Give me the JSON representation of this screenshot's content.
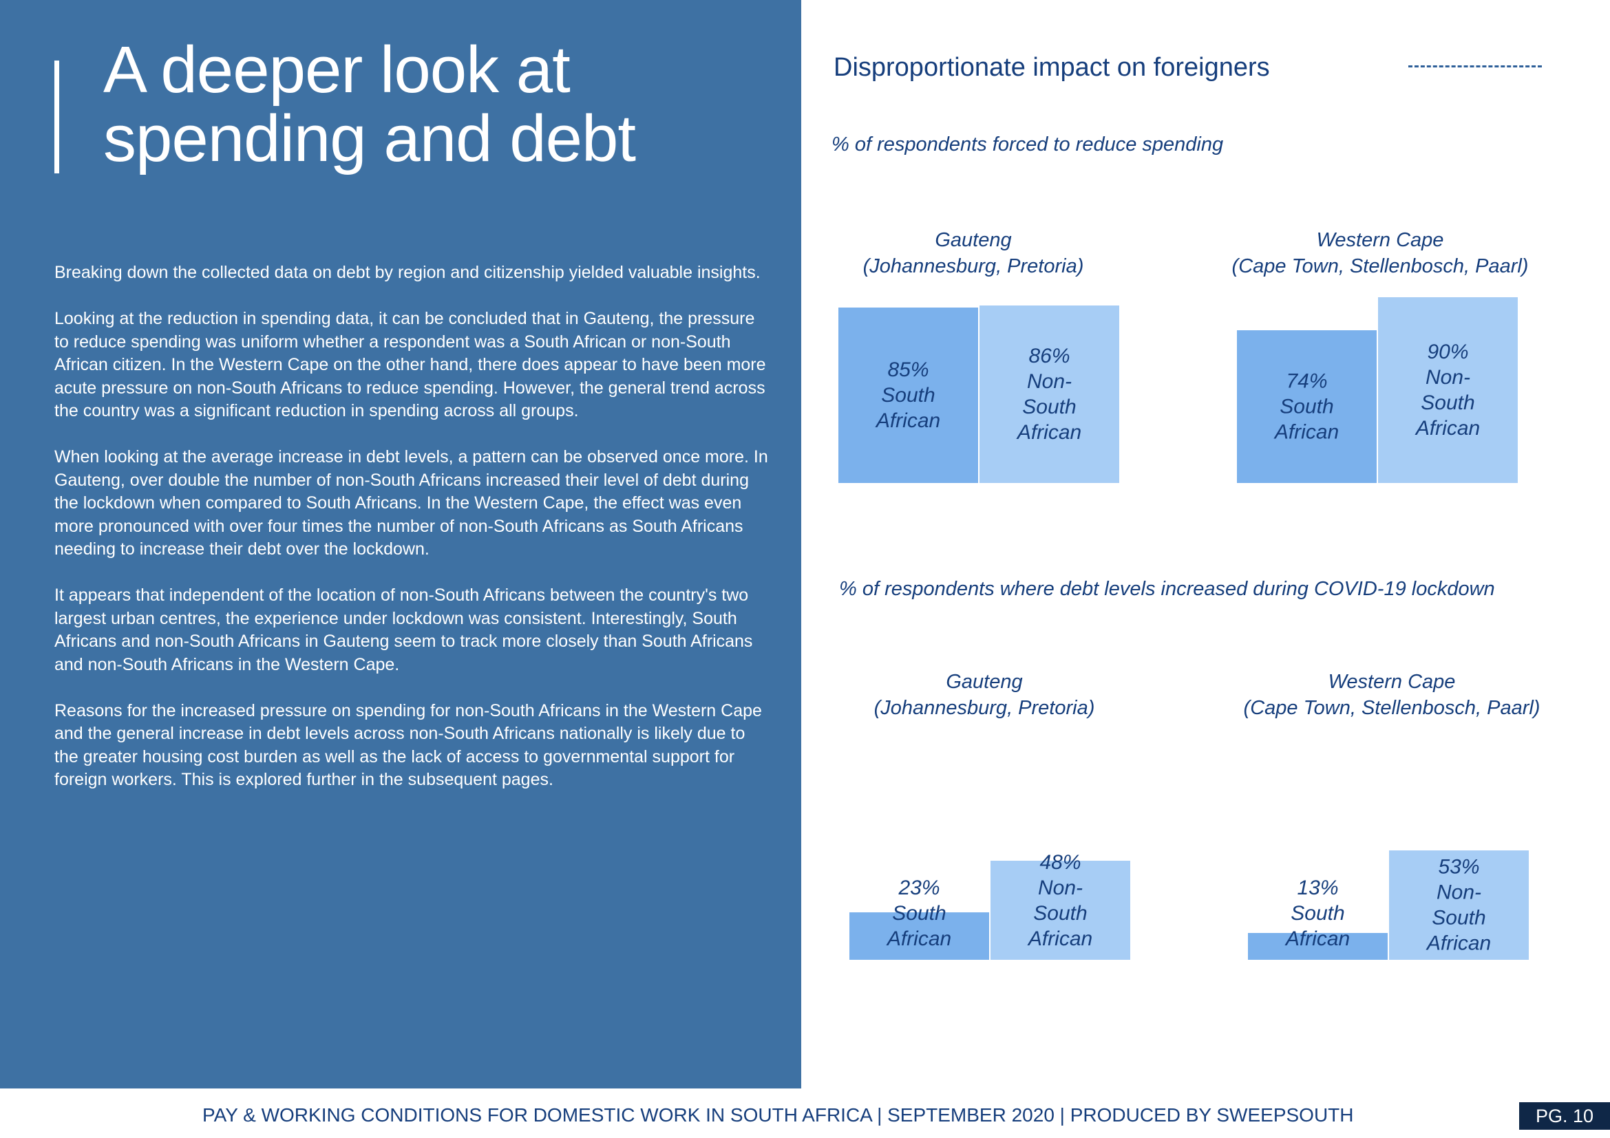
{
  "left": {
    "title_line1": "A deeper look at",
    "title_line2": "spending and debt",
    "paragraphs": [
      "Breaking down the collected data on debt by region and citizenship yielded valuable insights.",
      "Looking at the reduction in spending data, it can be concluded that in Gauteng, the pressure to reduce spending was uniform whether a respondent was a South African or non-South African citizen. In the Western Cape on the other hand, there does appear to have been more acute pressure on non-South Africans to reduce spending. However, the general trend across the country was a significant reduction in spending across all groups.",
      "When looking at the average increase in debt levels, a pattern can be observed once more. In Gauteng, over double the number of non-South Africans increased their level of debt during the lockdown when compared to South Africans. In the Western Cape, the effect was even more pronounced with over four times the number of non-South Africans as South Africans needing to increase their debt over the lockdown.",
      "It appears that independent of the location of non-South Africans between the country's two largest urban centres, the experience under lockdown was consistent. Interestingly, South Africans and non-South Africans in Gauteng seem to track more closely than South Africans and non-South Africans in the Western Cape.",
      "Reasons for the increased pressure on spending for non-South Africans in the Western Cape and the general increase in debt levels across non-South Africans nationally is likely due to the greater housing cost burden as well as the lack of access to governmental support for foreign workers. This is explored further in the subsequent pages."
    ]
  },
  "right": {
    "heading": "Disproportionate impact on foreigners"
  },
  "footer": {
    "text": "PAY & WORKING CONDITIONS FOR DOMESTIC WORK IN SOUTH AFRICA  |  SEPTEMBER 2020 | PRODUCED BY SWEEPSOUTH",
    "page": "PG. 10"
  },
  "colors": {
    "south_african": "#7bb1ec",
    "non_south_african": "#a7cdf5",
    "panel": "#3e71a3",
    "text_dark": "#163e7c"
  },
  "chart_data": [
    {
      "type": "bar",
      "title": "% of respondents forced to reduce spending",
      "groups": [
        {
          "region_line1": "Gauteng",
          "region_line2": "(Johannesburg, Pretoria)",
          "bars": [
            {
              "percent_label": "85%",
              "category_lines": [
                "South",
                "African"
              ],
              "value": 85
            },
            {
              "percent_label": "86%",
              "category_lines": [
                "Non-",
                "South",
                "African"
              ],
              "value": 86
            }
          ]
        },
        {
          "region_line1": "Western Cape",
          "region_line2": "(Cape Town, Stellenbosch, Paarl)",
          "bars": [
            {
              "percent_label": "74%",
              "category_lines": [
                "South",
                "African"
              ],
              "value": 74
            },
            {
              "percent_label": "90%",
              "category_lines": [
                "Non-",
                "South",
                "African"
              ],
              "value": 90
            }
          ]
        }
      ]
    },
    {
      "type": "bar",
      "title": "% of respondents where debt levels increased during COVID-19 lockdown",
      "groups": [
        {
          "region_line1": "Gauteng",
          "region_line2": "(Johannesburg, Pretoria)",
          "bars": [
            {
              "percent_label": "23%",
              "category_lines": [
                "South",
                "African"
              ],
              "value": 23
            },
            {
              "percent_label": "48%",
              "category_lines": [
                "Non-",
                "South",
                "African"
              ],
              "value": 48
            }
          ]
        },
        {
          "region_line1": "Western Cape",
          "region_line2": "(Cape Town, Stellenbosch, Paarl)",
          "bars": [
            {
              "percent_label": "13%",
              "category_lines": [
                "South",
                "African"
              ],
              "value": 13
            },
            {
              "percent_label": "53%",
              "category_lines": [
                "Non-",
                "South",
                "African"
              ],
              "value": 53
            }
          ]
        }
      ]
    }
  ]
}
